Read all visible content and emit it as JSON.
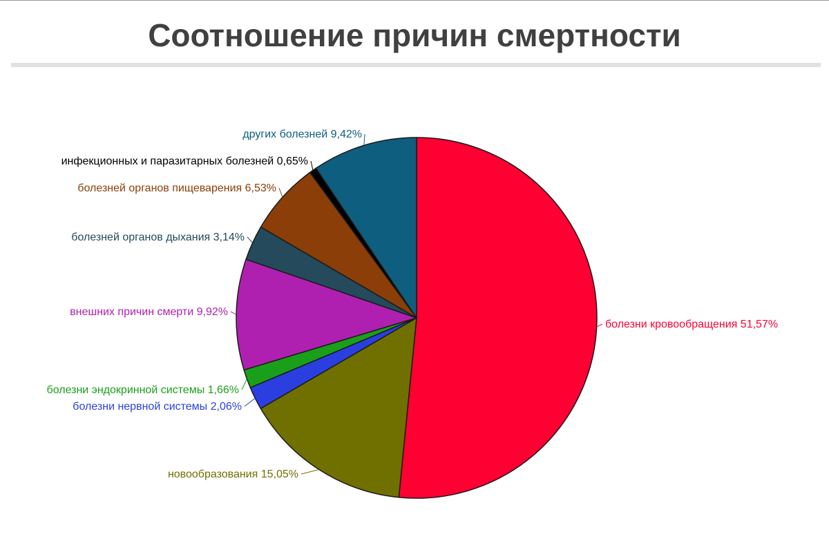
{
  "title": "Соотношение причин смертности",
  "chart_data": {
    "type": "pie",
    "title": "Соотношение причин смертности",
    "unit": "%",
    "slices": [
      {
        "label": "болезни кровообращения",
        "value": 51.57,
        "display": "болезни кровообращения 51,57%",
        "color": "#ff0033"
      },
      {
        "label": "новообразования",
        "value": 15.05,
        "display": "новообразования 15,05%",
        "color": "#707000"
      },
      {
        "label": "болезни нервной системы",
        "value": 2.06,
        "display": "болезни нервной системы 2,06%",
        "color": "#2b3fe0"
      },
      {
        "label": "болезни эндокринной системы",
        "value": 1.66,
        "display": "болезни эндокринной системы 1,66%",
        "color": "#1a9f1a"
      },
      {
        "label": "внешних причин смерти",
        "value": 9.92,
        "display": "внешних причин смерти 9,92%",
        "color": "#b020b0"
      },
      {
        "label": "болезней органов дыхания",
        "value": 3.14,
        "display": "болезней органов дыхания 3,14%",
        "color": "#244a5c"
      },
      {
        "label": "болезней органов пищеварения",
        "value": 6.53,
        "display": "болезней органов пищеварения 6,53%",
        "color": "#8b3e08"
      },
      {
        "label": "инфекционных и паразитарных болезней",
        "value": 0.65,
        "display": "инфекционных и паразитарных болезней 0,65%",
        "color": "#000000"
      },
      {
        "label": "других болезней",
        "value": 9.42,
        "display": "других болезней 9,42%",
        "color": "#0d5e7f"
      }
    ]
  }
}
